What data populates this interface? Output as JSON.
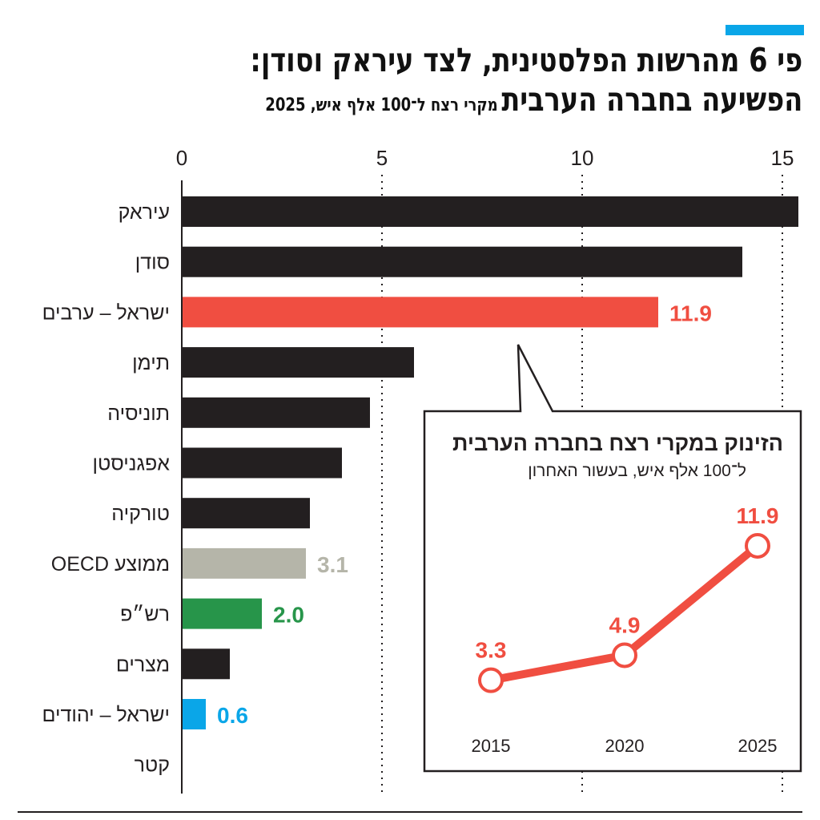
{
  "header": {
    "title_line1": "פי 6 מהרשות הפלסטינית, לצד עיראק וסודן:",
    "title_line2": "הפשיעה בחברה הערבית",
    "subtitle": "מקרי רצח ל־100 אלף איש, 2025",
    "accent_color": "#0aa6e8"
  },
  "chart_data": [
    {
      "type": "bar",
      "orientation": "horizontal",
      "xlim": [
        0,
        15.4
      ],
      "xticks": [
        0,
        5,
        10,
        15
      ],
      "grid": "vertical dotted",
      "categories": [
        "עיראק",
        "סודן",
        "ישראל – ערבים",
        "תימן",
        "תוניסיה",
        "אפגניסטן",
        "טורקיה",
        "ממוצע OECD",
        "רש״פ",
        "מצרים",
        "ישראל – יהודים",
        "קטר"
      ],
      "values": [
        15.4,
        14.0,
        11.9,
        5.8,
        4.7,
        4.0,
        3.2,
        3.1,
        2.0,
        1.2,
        0.6,
        0
      ],
      "colors": [
        "#231f20",
        "#231f20",
        "#f04e41",
        "#231f20",
        "#231f20",
        "#231f20",
        "#231f20",
        "#b5b5a9",
        "#27954a",
        "#231f20",
        "#0aa6e8",
        "#231f20"
      ],
      "data_labels": {
        "2": "11.9",
        "7": "3.1",
        "8": "2.0",
        "10": "0.6"
      }
    },
    {
      "type": "line",
      "title": "הזינוק במקרי רצח בחברה הערבית",
      "subtitle": "ל־100 אלף איש, בעשור האחרון",
      "x": [
        "2015",
        "2020",
        "2025"
      ],
      "values": [
        3.3,
        4.9,
        11.9
      ],
      "data_labels": [
        "3.3",
        "4.9",
        "11.9"
      ],
      "color": "#f04e41"
    }
  ]
}
